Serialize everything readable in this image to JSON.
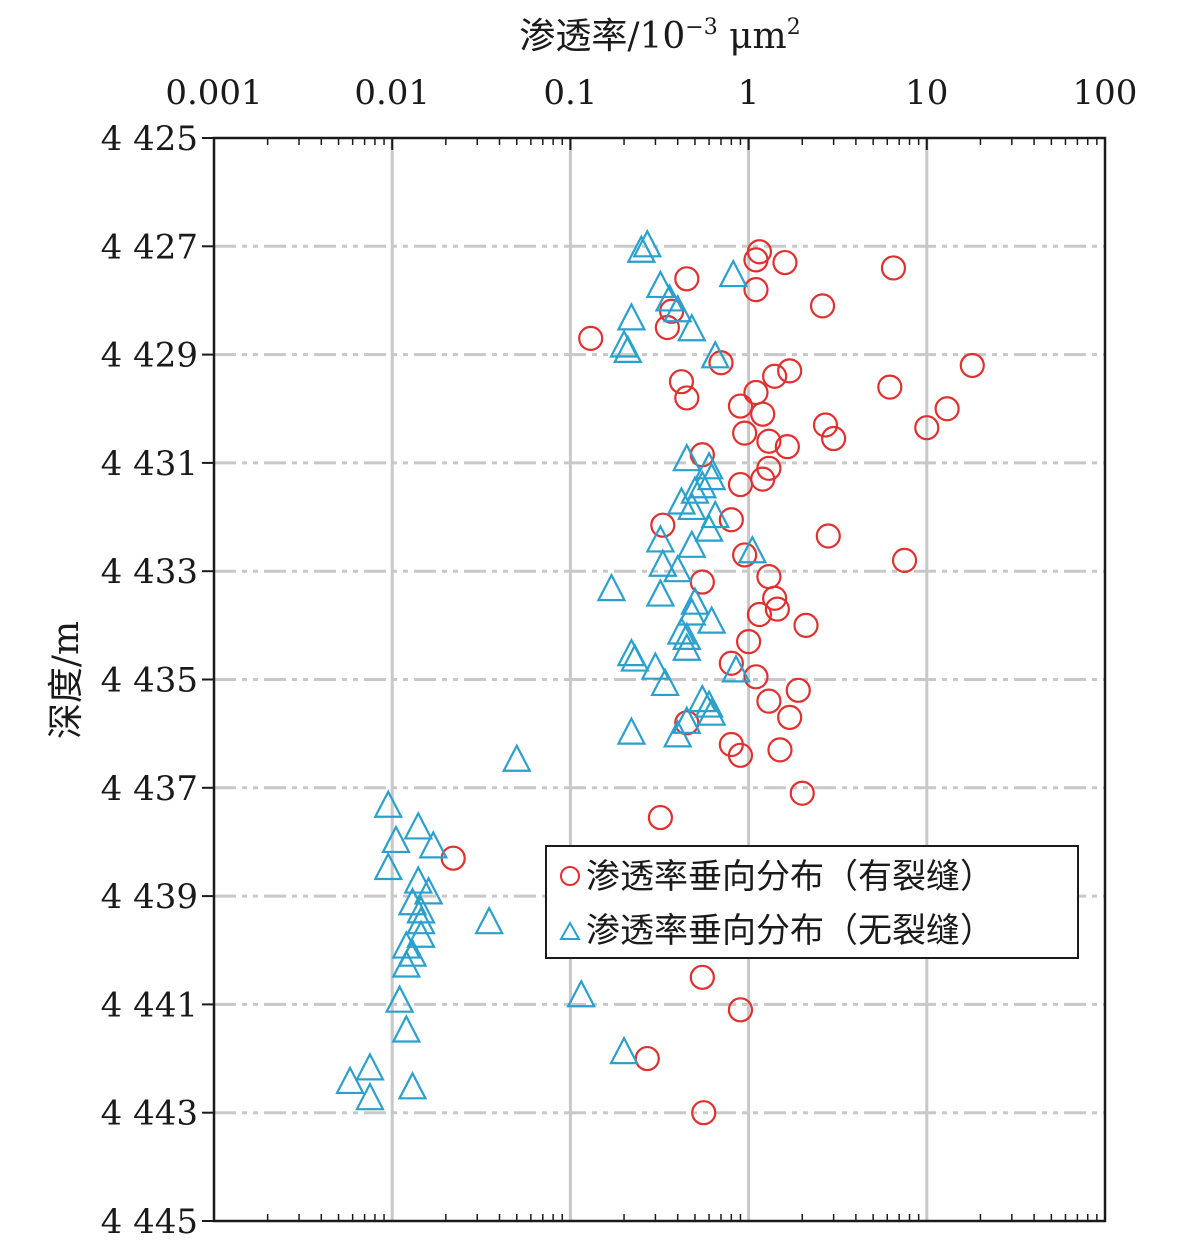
{
  "chart_data": {
    "type": "scatter",
    "xlabel_main": "渗透率/10",
    "xlabel_exp": "−3",
    "xlabel_unit": " μm",
    "xlabel_unit_exp": "2",
    "ylabel": "深度/m",
    "x_scale": "log",
    "xlim": [
      0.001,
      100
    ],
    "ylim": [
      4425,
      4445
    ],
    "y_inverted": true,
    "x_axis_position": "top",
    "x_tick_values": [
      0.001,
      0.01,
      0.1,
      1,
      10,
      100
    ],
    "x_tick_labels": [
      "0.001",
      "0.01",
      "0.1",
      "1",
      "10",
      "100"
    ],
    "y_tick_values": [
      4425,
      4427,
      4429,
      4431,
      4433,
      4435,
      4437,
      4439,
      4441,
      4443,
      4445
    ],
    "y_tick_labels": [
      "4 425",
      "4 427",
      "4 429",
      "4 431",
      "4 433",
      "4 435",
      "4 437",
      "4 439",
      "4 441",
      "4 443",
      "4 445"
    ],
    "grid": "on",
    "legend_position": "right-middle",
    "colors": {
      "fractured": "#e03030",
      "unfractured": "#2aa0cc",
      "grid": "#c8c8c8"
    },
    "series": [
      {
        "name": "渗透率垂向分布（有裂缝）",
        "marker": "circle",
        "points": [
          [
            1.15,
            4427.1
          ],
          [
            1.1,
            4427.25
          ],
          [
            1.6,
            4427.3
          ],
          [
            6.5,
            4427.4
          ],
          [
            0.45,
            4427.6
          ],
          [
            1.1,
            4427.8
          ],
          [
            2.6,
            4428.1
          ],
          [
            0.37,
            4428.2
          ],
          [
            0.35,
            4428.5
          ],
          [
            0.13,
            4428.7
          ],
          [
            0.7,
            4429.15
          ],
          [
            18,
            4429.2
          ],
          [
            1.7,
            4429.3
          ],
          [
            1.4,
            4429.4
          ],
          [
            0.42,
            4429.5
          ],
          [
            6.2,
            4429.6
          ],
          [
            1.1,
            4429.7
          ],
          [
            0.45,
            4429.8
          ],
          [
            0.9,
            4429.95
          ],
          [
            13,
            4430.0
          ],
          [
            1.2,
            4430.1
          ],
          [
            2.7,
            4430.3
          ],
          [
            10,
            4430.35
          ],
          [
            0.95,
            4430.45
          ],
          [
            3.0,
            4430.55
          ],
          [
            1.3,
            4430.6
          ],
          [
            1.65,
            4430.7
          ],
          [
            0.55,
            4430.85
          ],
          [
            1.3,
            4431.1
          ],
          [
            1.2,
            4431.3
          ],
          [
            0.9,
            4431.4
          ],
          [
            0.8,
            4432.05
          ],
          [
            0.33,
            4432.15
          ],
          [
            2.8,
            4432.35
          ],
          [
            0.95,
            4432.7
          ],
          [
            7.5,
            4432.8
          ],
          [
            1.3,
            4433.1
          ],
          [
            0.55,
            4433.2
          ],
          [
            1.4,
            4433.5
          ],
          [
            1.45,
            4433.7
          ],
          [
            1.15,
            4433.8
          ],
          [
            2.1,
            4434.0
          ],
          [
            1.0,
            4434.3
          ],
          [
            0.8,
            4434.7
          ],
          [
            1.1,
            4434.95
          ],
          [
            1.9,
            4435.2
          ],
          [
            1.3,
            4435.4
          ],
          [
            1.7,
            4435.7
          ],
          [
            0.45,
            4435.8
          ],
          [
            0.8,
            4436.2
          ],
          [
            1.5,
            4436.3
          ],
          [
            0.9,
            4436.4
          ],
          [
            2.0,
            4437.1
          ],
          [
            0.32,
            4437.55
          ],
          [
            0.022,
            4438.3
          ],
          [
            0.55,
            4440.5
          ],
          [
            0.9,
            4441.1
          ],
          [
            0.27,
            4442.0
          ],
          [
            0.56,
            4443.0
          ]
        ]
      },
      {
        "name": "渗透率垂向分布（无裂缝）",
        "marker": "triangle",
        "points": [
          [
            0.27,
            4427.0
          ],
          [
            0.25,
            4427.1
          ],
          [
            0.82,
            4427.55
          ],
          [
            0.32,
            4427.75
          ],
          [
            0.36,
            4428.0
          ],
          [
            0.4,
            4428.2
          ],
          [
            0.22,
            4428.35
          ],
          [
            0.48,
            4428.55
          ],
          [
            0.2,
            4428.85
          ],
          [
            0.21,
            4428.95
          ],
          [
            0.65,
            4429.05
          ],
          [
            0.45,
            4430.95
          ],
          [
            0.6,
            4431.1
          ],
          [
            0.62,
            4431.3
          ],
          [
            0.55,
            4431.45
          ],
          [
            0.5,
            4431.55
          ],
          [
            0.42,
            4431.75
          ],
          [
            0.48,
            4431.85
          ],
          [
            0.65,
            4432.0
          ],
          [
            0.6,
            4432.25
          ],
          [
            0.32,
            4432.45
          ],
          [
            0.48,
            4432.55
          ],
          [
            1.05,
            4432.65
          ],
          [
            0.33,
            4432.9
          ],
          [
            0.4,
            4433.0
          ],
          [
            0.17,
            4433.35
          ],
          [
            0.32,
            4433.45
          ],
          [
            0.5,
            4433.6
          ],
          [
            0.48,
            4433.8
          ],
          [
            0.62,
            4433.95
          ],
          [
            0.42,
            4434.15
          ],
          [
            0.45,
            4434.25
          ],
          [
            0.45,
            4434.45
          ],
          [
            0.22,
            4434.55
          ],
          [
            0.23,
            4434.65
          ],
          [
            0.3,
            4434.8
          ],
          [
            0.85,
            4434.85
          ],
          [
            0.34,
            4435.1
          ],
          [
            0.55,
            4435.4
          ],
          [
            0.6,
            4435.5
          ],
          [
            0.62,
            4435.65
          ],
          [
            0.45,
            4435.8
          ],
          [
            0.4,
            4436.05
          ],
          [
            0.22,
            4436.0
          ],
          [
            0.05,
            4436.5
          ],
          [
            0.0095,
            4437.35
          ],
          [
            0.014,
            4437.75
          ],
          [
            0.0105,
            4438.0
          ],
          [
            0.017,
            4438.1
          ],
          [
            0.0095,
            4438.5
          ],
          [
            0.014,
            4438.75
          ],
          [
            0.016,
            4438.95
          ],
          [
            0.013,
            4439.15
          ],
          [
            0.0145,
            4439.3
          ],
          [
            0.0145,
            4439.5
          ],
          [
            0.035,
            4439.5
          ],
          [
            0.0145,
            4439.75
          ],
          [
            0.012,
            4439.95
          ],
          [
            0.013,
            4440.1
          ],
          [
            0.012,
            4440.3
          ],
          [
            0.115,
            4440.85
          ],
          [
            0.011,
            4440.95
          ],
          [
            0.012,
            4441.5
          ],
          [
            0.2,
            4441.9
          ],
          [
            0.0075,
            4442.2
          ],
          [
            0.0058,
            4442.45
          ],
          [
            0.013,
            4442.55
          ],
          [
            0.0075,
            4442.75
          ]
        ]
      }
    ]
  }
}
